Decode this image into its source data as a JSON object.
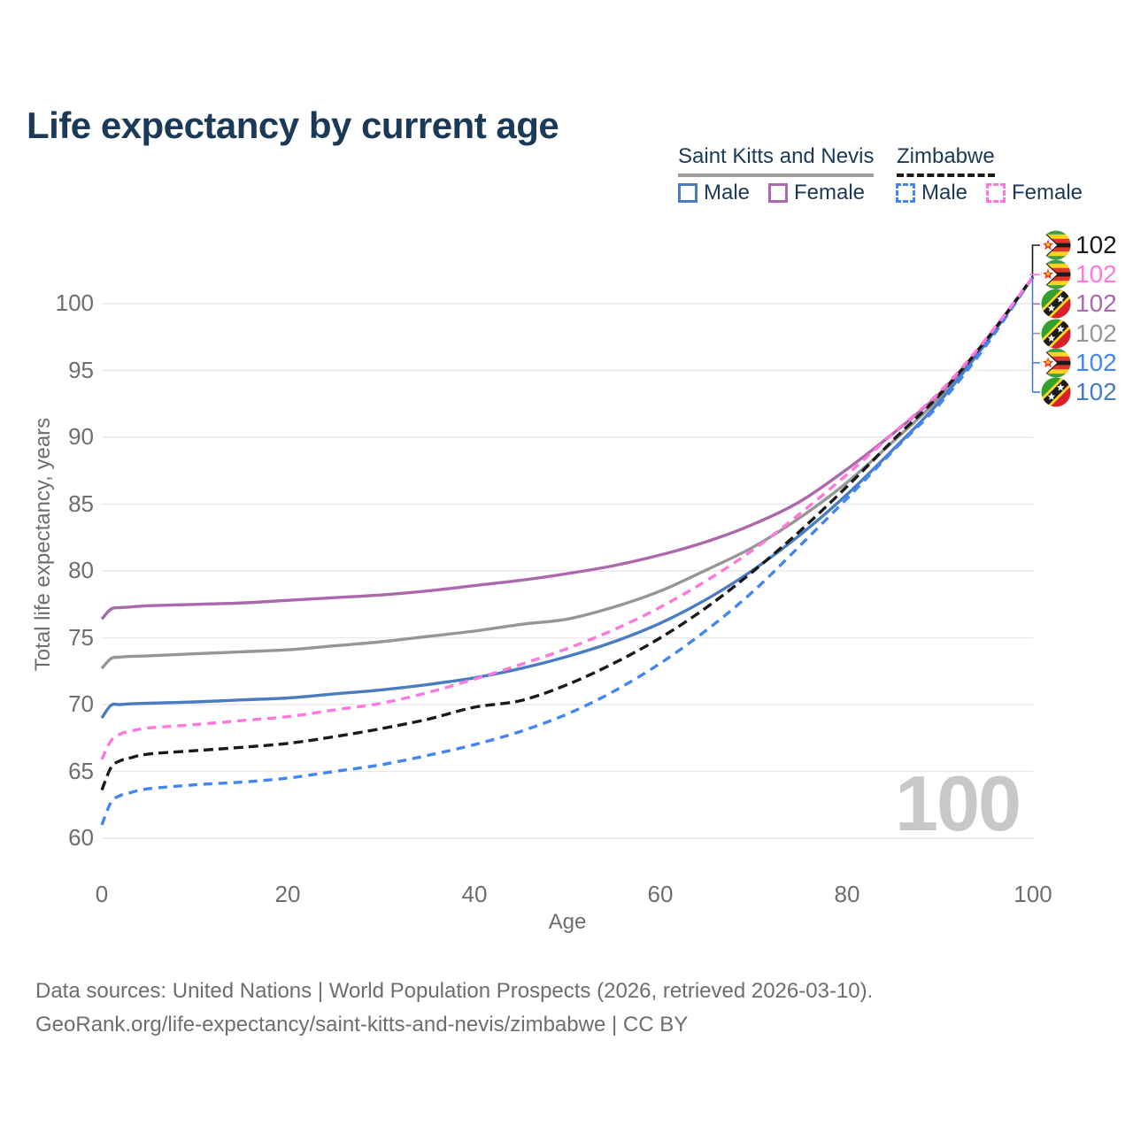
{
  "title": "Life expectancy by current age",
  "legend": {
    "groups": [
      {
        "title": "Saint Kitts and Nevis",
        "style": "solid",
        "items": [
          {
            "label": "Male",
            "color_key": "skn_male"
          },
          {
            "label": "Female",
            "color_key": "skn_female"
          }
        ]
      },
      {
        "title": "Zimbabwe",
        "style": "dashed",
        "items": [
          {
            "label": "Male",
            "color_key": "zwe_male"
          },
          {
            "label": "Female",
            "color_key": "zwe_female"
          }
        ]
      }
    ]
  },
  "watermark": "100",
  "footer": {
    "line1": "Data sources: United Nations | World Population Prospects (2026, retrieved 2026-03-10).",
    "line2": "GeoRank.org/life-expectancy/saint-kitts-and-nevis/zimbabwe | CC BY"
  },
  "colors": {
    "skn_male": "#4a7cc2",
    "skn_female": "#ac68ac",
    "skn_total": "#969696",
    "zwe_male": "#4285f4",
    "zwe_female": "#ff77dd",
    "zwe_total": "#1a1a1a",
    "title_text": "#1a3a57",
    "axis_text": "#6e6e6e",
    "grid": "#e9e9e9",
    "watermark_text": "#c8c8c8"
  },
  "chart_data": {
    "type": "line",
    "title": "Life expectancy by current age",
    "xlabel": "Age",
    "ylabel": "Total life expectancy, years",
    "xlim": [
      0,
      100
    ],
    "ylim": [
      60,
      102
    ],
    "xticks": [
      0,
      20,
      40,
      60,
      80,
      100
    ],
    "yticks": [
      60,
      65,
      70,
      75,
      80,
      85,
      90,
      95,
      100
    ],
    "grid": true,
    "legend_position": "top-right",
    "ages": [
      0,
      1,
      2,
      3,
      5,
      10,
      15,
      20,
      25,
      30,
      35,
      40,
      45,
      50,
      55,
      60,
      65,
      70,
      75,
      80,
      85,
      90,
      95,
      100
    ],
    "series": [
      {
        "id": "skn-total",
        "name": "Saint Kitts and Nevis — Total",
        "color_key": "skn_total",
        "dash": null,
        "values": [
          72.7,
          73.45,
          73.55,
          73.6,
          73.65,
          73.8,
          73.95,
          74.1,
          74.4,
          74.7,
          75.1,
          75.5,
          76.0,
          76.4,
          77.3,
          78.5,
          80.1,
          81.8,
          84.0,
          86.6,
          89.7,
          93.0,
          97.2,
          102
        ]
      },
      {
        "id": "skn-female",
        "name": "Saint Kitts and Nevis — Female",
        "color_key": "skn_female",
        "dash": null,
        "values": [
          76.4,
          77.15,
          77.25,
          77.3,
          77.4,
          77.5,
          77.6,
          77.8,
          78.0,
          78.2,
          78.5,
          78.9,
          79.3,
          79.8,
          80.4,
          81.2,
          82.2,
          83.5,
          85.2,
          87.6,
          90.3,
          93.3,
          97.3,
          102
        ]
      },
      {
        "id": "skn-male",
        "name": "Saint Kitts and Nevis — Male",
        "color_key": "skn_male",
        "dash": null,
        "values": [
          69.0,
          69.95,
          70.0,
          70.05,
          70.1,
          70.2,
          70.35,
          70.5,
          70.8,
          71.1,
          71.5,
          72.0,
          72.7,
          73.6,
          74.7,
          76.1,
          77.9,
          80.1,
          82.7,
          85.7,
          89.1,
          92.7,
          97.1,
          102
        ]
      },
      {
        "id": "zwe-male",
        "name": "Zimbabwe — Male",
        "color_key": "zwe_male",
        "dash": "10 7",
        "values": [
          61.0,
          62.7,
          63.2,
          63.4,
          63.7,
          64.0,
          64.2,
          64.5,
          65.0,
          65.5,
          66.2,
          67.0,
          68.0,
          69.3,
          71.0,
          73.1,
          75.6,
          78.5,
          81.9,
          85.4,
          89.0,
          92.5,
          96.9,
          102
        ]
      },
      {
        "id": "zwe-total",
        "name": "Zimbabwe — Total",
        "color_key": "zwe_total",
        "dash": "11 6",
        "values": [
          63.6,
          65.3,
          65.8,
          66.0,
          66.3,
          66.55,
          66.8,
          67.1,
          67.6,
          68.2,
          68.9,
          69.8,
          70.3,
          71.5,
          73.1,
          75.0,
          77.3,
          80.0,
          83.0,
          86.3,
          89.8,
          93.2,
          97.3,
          102
        ]
      },
      {
        "id": "zwe-female",
        "name": "Zimbabwe — Female",
        "color_key": "zwe_female",
        "dash": "10 7",
        "values": [
          65.9,
          67.3,
          67.8,
          68.0,
          68.25,
          68.5,
          68.8,
          69.1,
          69.6,
          70.1,
          70.9,
          71.9,
          73.0,
          74.2,
          75.6,
          77.3,
          79.3,
          81.6,
          84.3,
          87.2,
          90.3,
          93.4,
          97.4,
          102
        ]
      }
    ],
    "end_labels": [
      {
        "flag": "zw",
        "country": "Zimbabwe",
        "value": "102",
        "color_key": "zwe_total"
      },
      {
        "flag": "zw",
        "country": "Zimbabwe",
        "value": "102",
        "color_key": "zwe_female"
      },
      {
        "flag": "kn",
        "country": "Saint Kitts and Nevis",
        "value": "102",
        "color_key": "skn_female"
      },
      {
        "flag": "kn",
        "country": "Saint Kitts and Nevis",
        "value": "102",
        "color_key": "skn_total"
      },
      {
        "flag": "zw",
        "country": "Zimbabwe",
        "value": "102",
        "color_key": "zwe_male"
      },
      {
        "flag": "kn",
        "country": "Saint Kitts and Nevis",
        "value": "102",
        "color_key": "skn_male"
      }
    ],
    "age_watermark": "100"
  }
}
